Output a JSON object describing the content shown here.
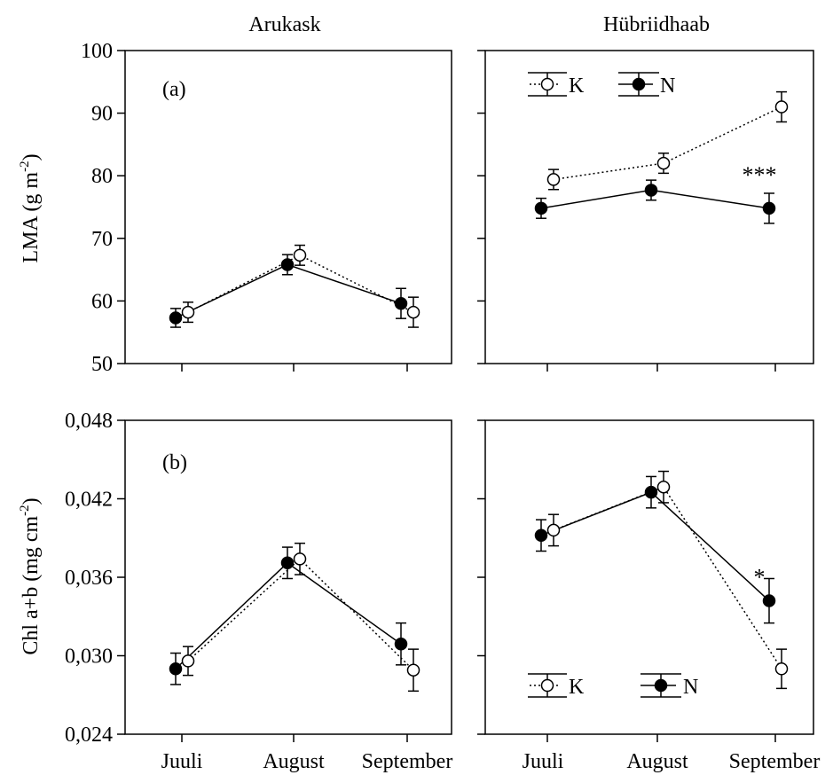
{
  "columns": [
    "Arukask",
    "Hübriidhaab"
  ],
  "x_tick_labels": [
    "Juuli",
    "August",
    "September"
  ],
  "legend": {
    "k_label": "K",
    "n_label": "N"
  },
  "chart_data": [
    {
      "type": "line",
      "panel_label": "(a)",
      "column": "Arukask",
      "ylabel": "LMA (g m-2)",
      "ylabel_unit_base": "LMA (g m",
      "ylabel_unit_sup": "-2",
      "ylabel_unit_end": ")",
      "ylim": [
        50,
        100
      ],
      "yticks": [
        50,
        60,
        70,
        80,
        90,
        100
      ],
      "ytick_labels": [
        "50",
        "60",
        "70",
        "80",
        "90",
        "100"
      ],
      "categories": [
        "Juuli",
        "August",
        "September"
      ],
      "series": [
        {
          "name": "N",
          "values": [
            57.3,
            65.8,
            59.6
          ],
          "errors": [
            1.5,
            1.6,
            2.4
          ]
        },
        {
          "name": "K",
          "values": [
            58.2,
            67.3,
            58.2
          ],
          "errors": [
            1.6,
            1.6,
            2.4
          ]
        }
      ],
      "annotations": [],
      "legend": "none"
    },
    {
      "type": "line",
      "column": "Hübriidhaab",
      "ylim": [
        50,
        100
      ],
      "yticks": [
        50,
        60,
        70,
        80,
        90,
        100
      ],
      "categories": [
        "Juuli",
        "August",
        "September"
      ],
      "series": [
        {
          "name": "N",
          "values": [
            74.8,
            77.7,
            74.8
          ],
          "errors": [
            1.6,
            1.6,
            2.4
          ]
        },
        {
          "name": "K",
          "values": [
            79.4,
            82.0,
            91.0
          ],
          "errors": [
            1.6,
            1.6,
            2.4
          ]
        }
      ],
      "annotations": [
        {
          "text": "***",
          "category": "September",
          "y": 80.3
        }
      ],
      "legend": "top-left"
    },
    {
      "type": "line",
      "panel_label": "(b)",
      "column": "Arukask",
      "ylabel": "Chl a+b (mg cm-2)",
      "ylabel_unit_base": "Chl a+b (mg cm",
      "ylabel_unit_sup": "-2",
      "ylabel_unit_end": ")",
      "ylim": [
        0.024,
        0.048
      ],
      "yticks": [
        0.024,
        0.03,
        0.036,
        0.042,
        0.048
      ],
      "ytick_labels": [
        "0,024",
        "0,030",
        "0,036",
        "0,042",
        "0,048"
      ],
      "categories": [
        "Juuli",
        "August",
        "September"
      ],
      "series": [
        {
          "name": "N",
          "values": [
            0.029,
            0.0371,
            0.0309
          ],
          "errors": [
            0.0012,
            0.0012,
            0.0016
          ]
        },
        {
          "name": "K",
          "values": [
            0.0296,
            0.0374,
            0.0289
          ],
          "errors": [
            0.0011,
            0.0012,
            0.0016
          ]
        }
      ],
      "annotations": [],
      "legend": "none"
    },
    {
      "type": "line",
      "column": "Hübriidhaab",
      "ylim": [
        0.024,
        0.048
      ],
      "yticks": [
        0.024,
        0.03,
        0.036,
        0.042,
        0.048
      ],
      "categories": [
        "Juuli",
        "August",
        "September"
      ],
      "series": [
        {
          "name": "N",
          "values": [
            0.0392,
            0.0425,
            0.0342
          ],
          "errors": [
            0.0012,
            0.0012,
            0.0017
          ]
        },
        {
          "name": "K",
          "values": [
            0.0396,
            0.0429,
            0.029
          ],
          "errors": [
            0.0012,
            0.0012,
            0.0015
          ]
        }
      ],
      "annotations": [
        {
          "text": "*",
          "category": "September",
          "y": 0.0361
        }
      ],
      "legend": "bottom-left"
    }
  ]
}
